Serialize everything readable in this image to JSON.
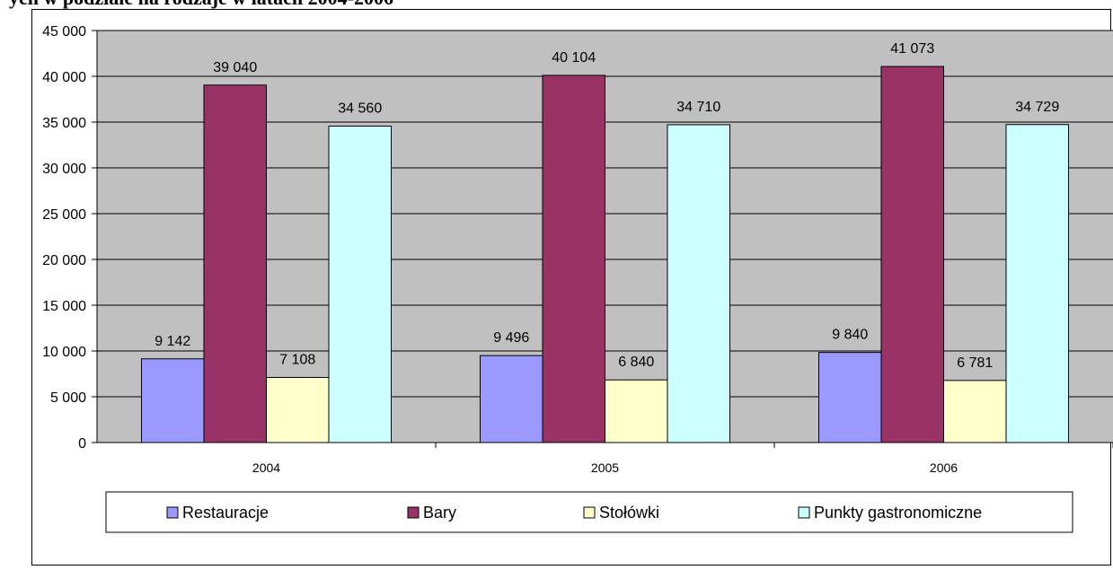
{
  "page": {
    "title_fragment": "ych w podziale na rodzaje w latach 2004-2006"
  },
  "chart_data": {
    "type": "bar",
    "categories": [
      "2004",
      "2005",
      "2006"
    ],
    "series": [
      {
        "name": "Restauracje",
        "values": [
          9142,
          9496,
          9840
        ],
        "labels": [
          "9 142",
          "9 496",
          "9 840"
        ],
        "color": "#9999ff"
      },
      {
        "name": "Bary",
        "values": [
          39040,
          40104,
          41073
        ],
        "labels": [
          "39 040",
          "40 104",
          "41 073"
        ],
        "color": "#993366"
      },
      {
        "name": "Stołówki",
        "values": [
          7108,
          6840,
          6781
        ],
        "labels": [
          "7 108",
          "6 840",
          "6 781"
        ],
        "color": "#ffffcc"
      },
      {
        "name": "Punkty gastronomiczne",
        "values": [
          34560,
          34710,
          34729
        ],
        "labels": [
          "34 560",
          "34 710",
          "34 729"
        ],
        "color": "#ccffff"
      }
    ],
    "ylim": [
      0,
      45000
    ],
    "yticks": [
      0,
      5000,
      10000,
      15000,
      20000,
      25000,
      30000,
      35000,
      40000,
      45000
    ],
    "ytick_labels": [
      "0",
      "5 000",
      "10 000",
      "15 000",
      "20 000",
      "25 000",
      "30 000",
      "35 000",
      "40 000",
      "45 000"
    ],
    "grid": true,
    "plot_background": "#c0c0c0",
    "legend_position": "bottom"
  }
}
